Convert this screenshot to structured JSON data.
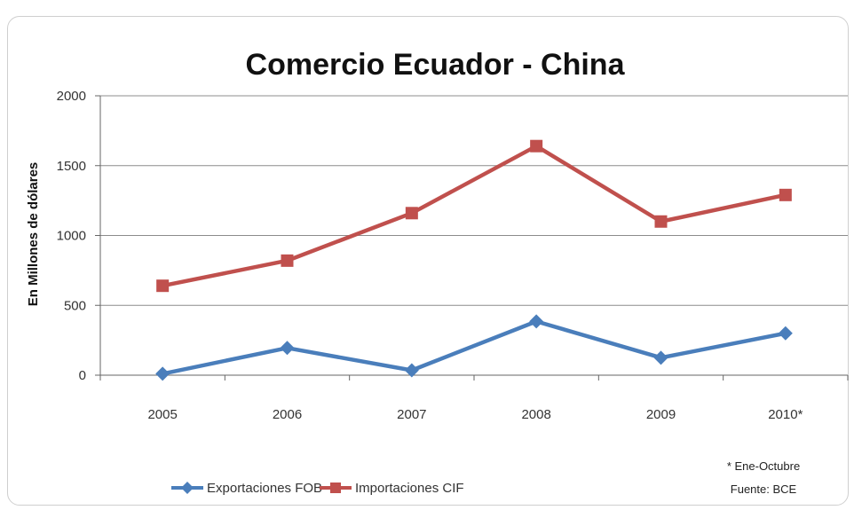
{
  "chart_data": {
    "type": "line",
    "title": "Comercio Ecuador - China",
    "xlabel": "",
    "ylabel": "En Millones de dólares",
    "categories": [
      "2005",
      "2006",
      "2007",
      "2008",
      "2009",
      "2010*"
    ],
    "ylim": [
      0,
      2000
    ],
    "yticks": [
      0,
      500,
      1000,
      1500,
      2000
    ],
    "grid": true,
    "legend_position": "bottom",
    "series": [
      {
        "name": "Exportaciones FOB",
        "color": "#4a7ebb",
        "marker": "diamond",
        "values": [
          10,
          195,
          35,
          385,
          125,
          300
        ]
      },
      {
        "name": "Importaciones CIF",
        "color": "#c0504d",
        "marker": "square",
        "values": [
          640,
          820,
          1160,
          1640,
          1100,
          1290
        ]
      }
    ],
    "notes": [
      "* Ene-Octubre",
      "Fuente: BCE"
    ]
  }
}
